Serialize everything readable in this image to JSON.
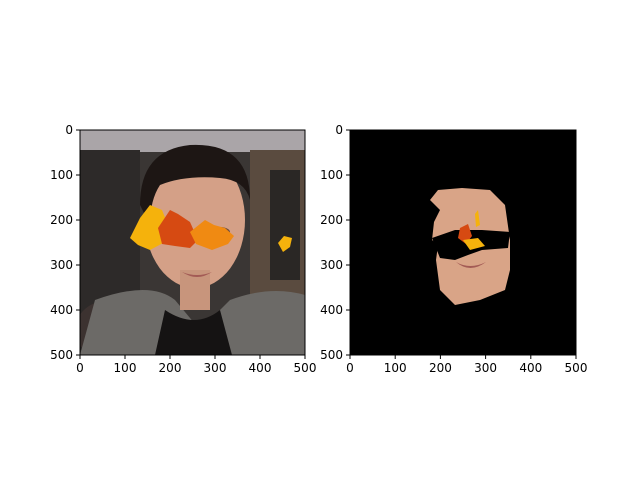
{
  "panels": [
    {
      "id": "original",
      "image_description": "photo",
      "xlim": [
        0,
        500
      ],
      "ylim": [
        500,
        0
      ],
      "x_ticks": [
        "0",
        "100",
        "200",
        "300",
        "400",
        "500"
      ],
      "y_ticks": [
        "0",
        "100",
        "200",
        "300",
        "400",
        "500"
      ]
    },
    {
      "id": "masked",
      "image_description": "masked face region",
      "xlim": [
        0,
        500
      ],
      "ylim": [
        500,
        0
      ],
      "x_ticks": [
        "0",
        "100",
        "200",
        "300",
        "400",
        "500"
      ],
      "y_ticks": [
        "0",
        "100",
        "200",
        "300",
        "400",
        "500"
      ]
    }
  ],
  "colors": {
    "leaf_red": "#d64a12",
    "leaf_orange": "#f08a12",
    "leaf_yellow": "#f5b20c",
    "skin": "#d9a487",
    "background_black": "#000000"
  }
}
